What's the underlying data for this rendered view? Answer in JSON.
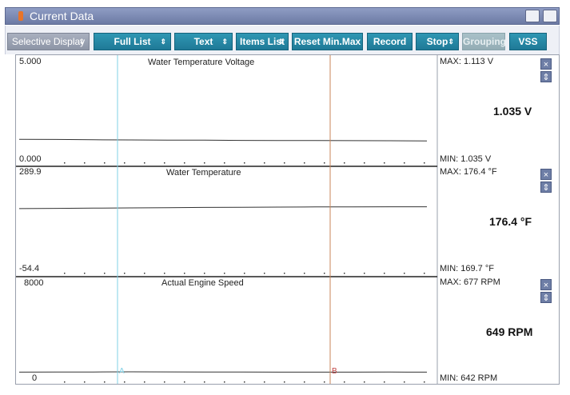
{
  "window": {
    "title": "Current Data"
  },
  "toolbar": {
    "buttons": [
      {
        "label": "Selective Display",
        "arrow": "⇕"
      },
      {
        "label": "Full List",
        "arrow": "⇕"
      },
      {
        "label": "Text",
        "arrow": "⇕"
      },
      {
        "label": "Items List",
        "arrow": "⇕"
      },
      {
        "label": "Reset Min.Max"
      },
      {
        "label": "Record"
      },
      {
        "label": "Stop",
        "arrow": "⇕"
      },
      {
        "label": "Grouping"
      },
      {
        "label": "VSS"
      }
    ]
  },
  "panels": [
    {
      "title": "Water Temperature Voltage",
      "y_max": "5.000",
      "y_min": "0.000",
      "max_label": "MAX: 1.113 V",
      "min_label": "MIN: 1.035 V",
      "current": "1.035 V",
      "range": [
        0,
        5.0
      ],
      "series": [
        1.113,
        1.11,
        1.09,
        1.085,
        1.075,
        1.07,
        1.06,
        1.055,
        1.05,
        1.045,
        1.04,
        1.035
      ]
    },
    {
      "title": "Water Temperature",
      "y_max": "289.9",
      "y_min": "-54.4",
      "max_label": "MAX: 176.4 °F",
      "min_label": "MIN: 169.7 °F",
      "current": "176.4 °F",
      "range": [
        -54.4,
        289.9
      ],
      "series": [
        169.7,
        170.5,
        171.5,
        172.4,
        173.2,
        174,
        174.6,
        175.2,
        175.7,
        176,
        176.2,
        176.4
      ]
    },
    {
      "title": "Actual Engine Speed",
      "y_max": "8000",
      "y_min": "0",
      "max_label": "MAX:   677 RPM",
      "min_label": "MIN:   642 RPM",
      "current": "649 RPM",
      "range": [
        0,
        8000
      ],
      "series": [
        650,
        655,
        662,
        677,
        668,
        660,
        655,
        650,
        652,
        648,
        660,
        649
      ]
    }
  ],
  "cursors": {
    "a_label": "A",
    "b_label": "B"
  },
  "colors": {
    "cursor_a": "#7fd0e6",
    "cursor_b": "#c8865a",
    "trace": "#333333"
  }
}
